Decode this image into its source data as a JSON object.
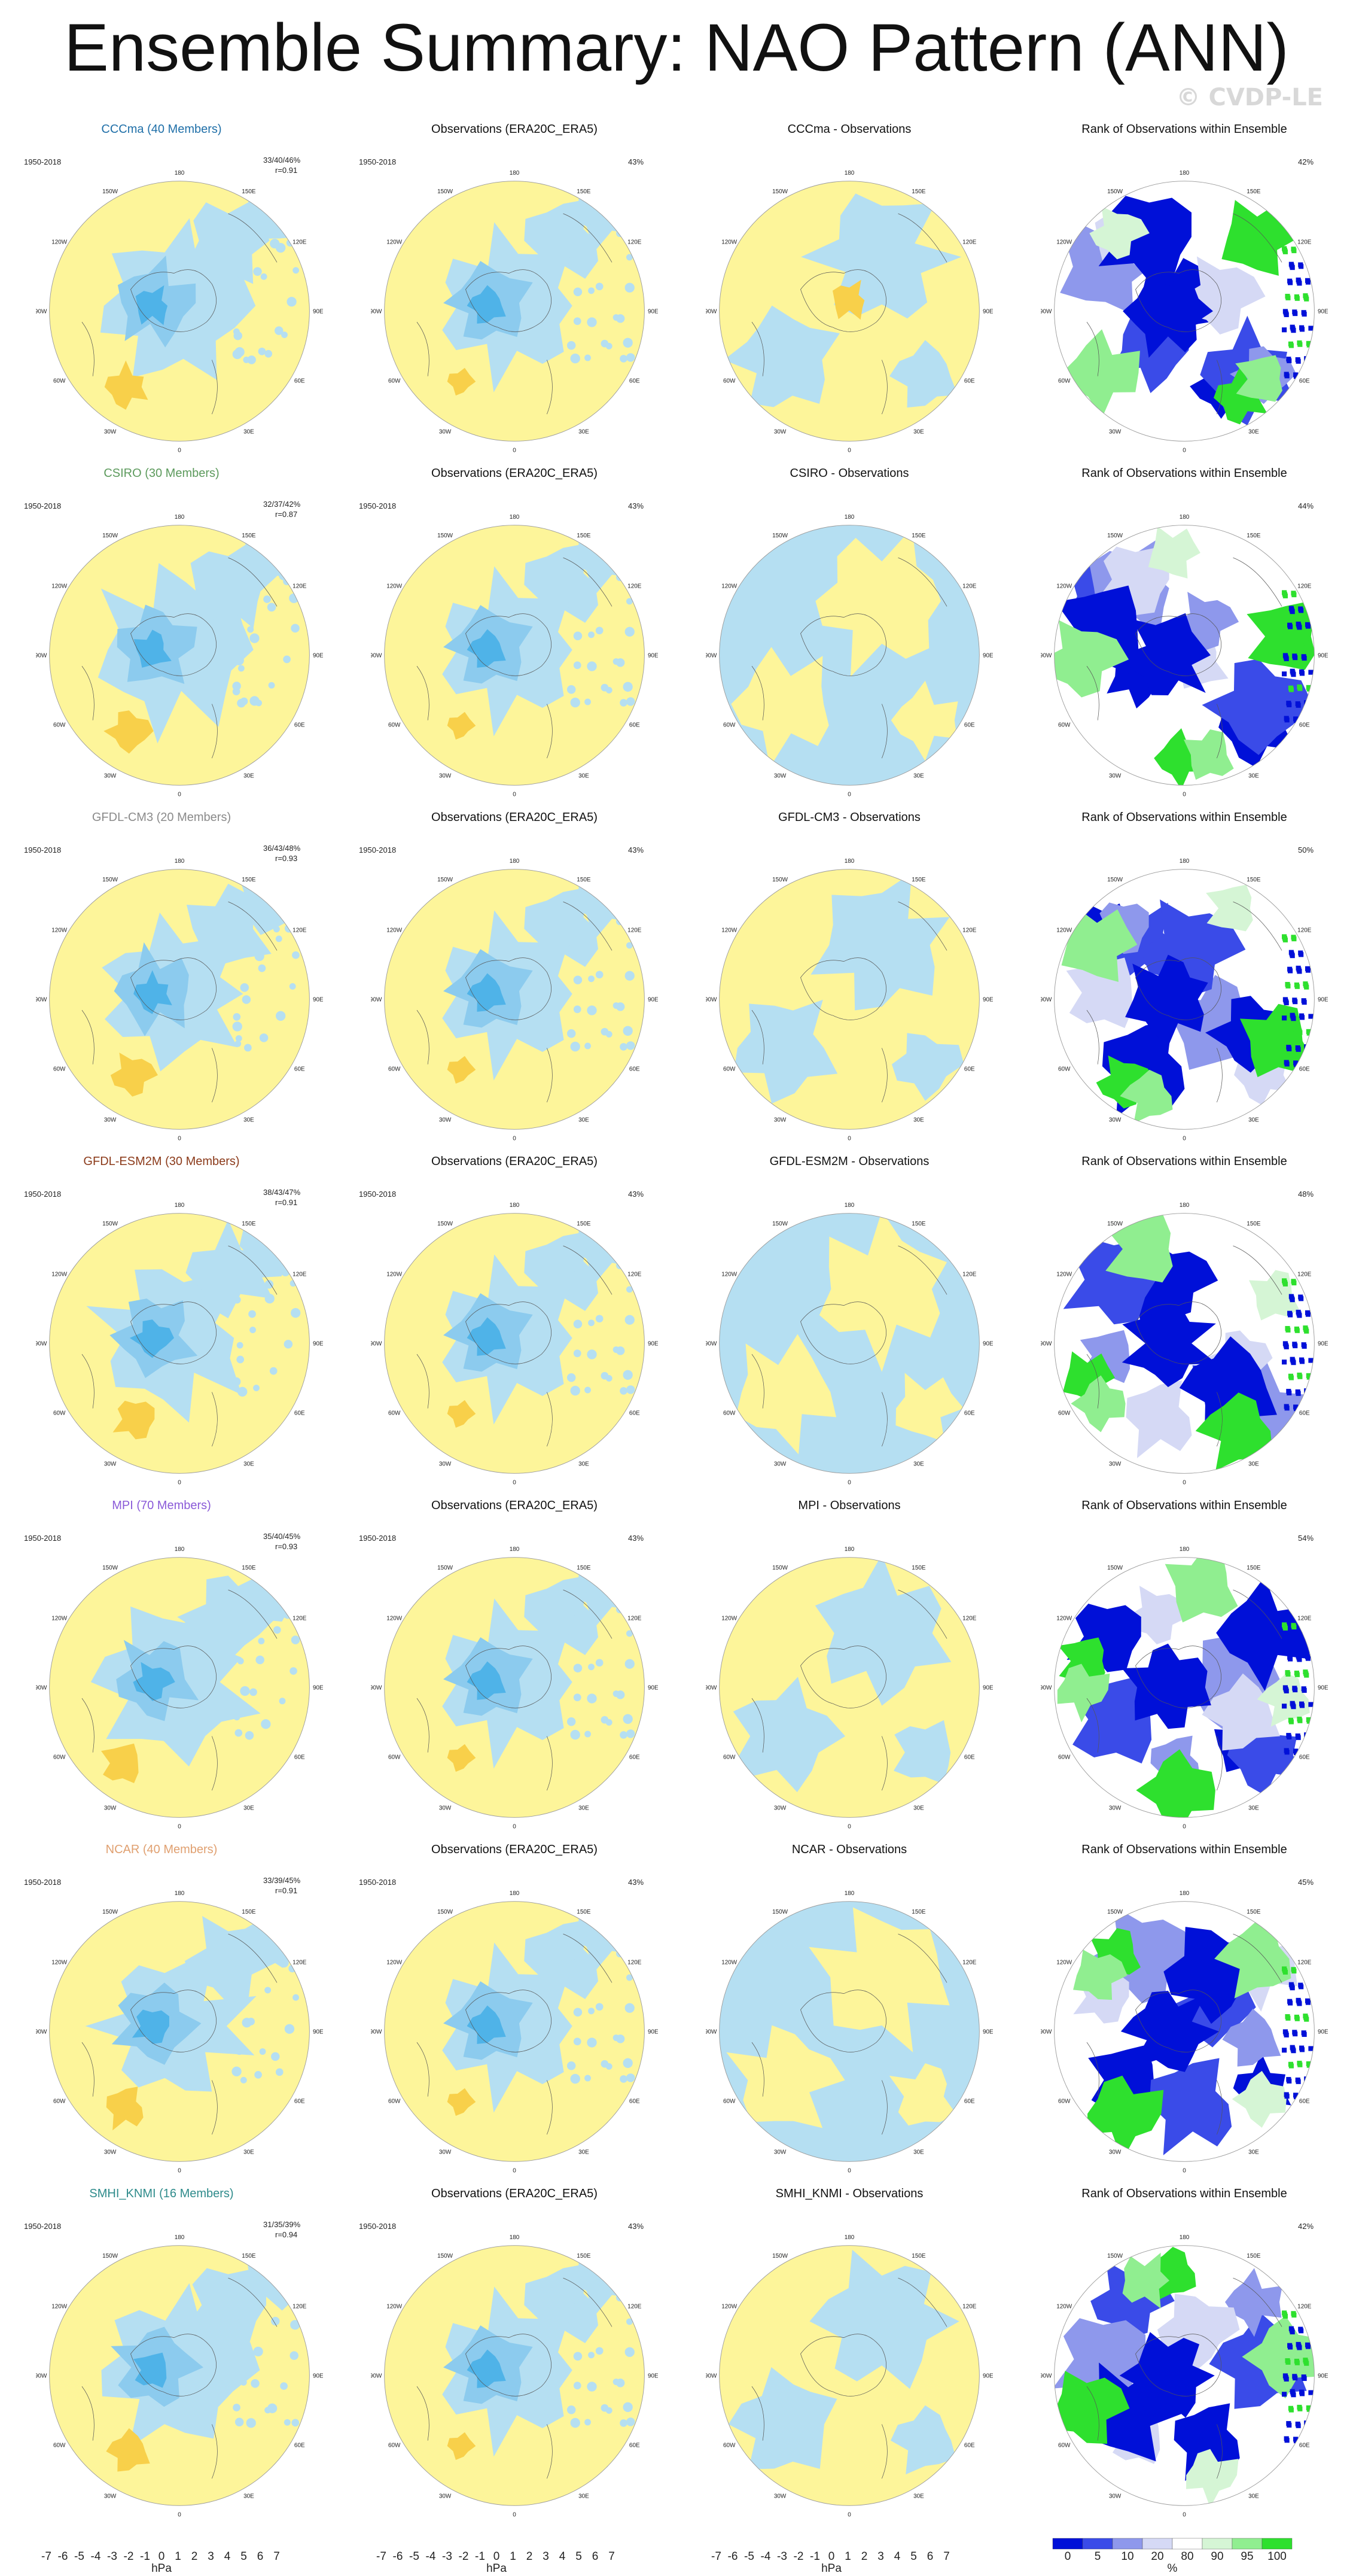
{
  "title": "Ensemble Summary: NAO Pattern (ANN)",
  "watermark": "© CVDP-LE",
  "period": "1950-2018",
  "col_titles": {
    "obs": "Observations (ERA20C_ERA5)",
    "rank": "Rank of Observations within Ensemble",
    "diff_suffix": " - Observations"
  },
  "obs_variance": "43%",
  "lon_labels": [
    "180",
    "150E",
    "120E",
    "90E",
    "60E",
    "30E",
    "0",
    "30W",
    "60W",
    "90W",
    "120W",
    "150W"
  ],
  "colors": {
    "CCCma": "#1f6fa8",
    "CSIRO": "#5c9a5c",
    "GFDL-CM3": "#8a8a8a",
    "GFDL-ESM2M": "#8b3a1a",
    "MPI": "#8a5ad8",
    "NCAR": "#e0a070",
    "SMHI_KNMI": "#2e8b8b",
    "map_pos": "#fdf59a",
    "map_neg": "#b5dff2",
    "map_neg2": "#8ccbee",
    "map_neg3": "#4fb3e8",
    "map_pos2": "#f8d04a"
  },
  "chart_data": [
    {
      "type": "map",
      "model": "CCCma",
      "members": "40",
      "title": "CCCma (40 Members)",
      "spread": "33/40/46%",
      "pattern_r": "r=0.91",
      "diff_title": "CCCma - Observations",
      "rank_percent": "42%"
    },
    {
      "type": "map",
      "model": "CSIRO",
      "members": "30",
      "title": "CSIRO (30 Members)",
      "spread": "32/37/42%",
      "pattern_r": "r=0.87",
      "diff_title": "CSIRO - Observations",
      "rank_percent": "44%"
    },
    {
      "type": "map",
      "model": "GFDL-CM3",
      "members": "20",
      "title": "GFDL-CM3 (20 Members)",
      "spread": "36/43/48%",
      "pattern_r": "r=0.93",
      "diff_title": "GFDL-CM3 - Observations",
      "rank_percent": "50%"
    },
    {
      "type": "map",
      "model": "GFDL-ESM2M",
      "members": "30",
      "title": "GFDL-ESM2M (30 Members)",
      "spread": "38/43/47%",
      "pattern_r": "r=0.91",
      "diff_title": "GFDL-ESM2M - Observations",
      "rank_percent": "48%"
    },
    {
      "type": "map",
      "model": "MPI",
      "members": "70",
      "title": "MPI (70 Members)",
      "spread": "35/40/45%",
      "pattern_r": "r=0.93",
      "diff_title": "MPI - Observations",
      "rank_percent": "54%"
    },
    {
      "type": "map",
      "model": "NCAR",
      "members": "40",
      "title": "NCAR (40 Members)",
      "spread": "33/39/45%",
      "pattern_r": "r=0.91",
      "diff_title": "NCAR - Observations",
      "rank_percent": "45%"
    },
    {
      "type": "map",
      "model": "SMHI_KNMI",
      "members": "16",
      "title": "SMHI_KNMI (16 Members)",
      "spread": "31/35/39%",
      "pattern_r": "r=0.94",
      "diff_title": "SMHI_KNMI - Observations",
      "rank_percent": "42%"
    }
  ],
  "colorbars": {
    "hpa": {
      "labels": [
        "-7",
        "-6",
        "-5",
        "-4",
        "-3",
        "-2",
        "-1",
        "0",
        "1",
        "2",
        "3",
        "4",
        "5",
        "6",
        "7"
      ],
      "unit": "hPa",
      "colors": [
        "#7b2ee0",
        "#3b35e8",
        "#2f62e8",
        "#3a8fe8",
        "#4aa9ea",
        "#70c3ee",
        "#a6d8f3",
        "#d8eef8",
        "#ffffff",
        "#fdf59a",
        "#f8d04a",
        "#f7a531",
        "#f07a1e",
        "#e8441a",
        "#d81f1f",
        "#f5a0a0"
      ]
    },
    "rank": {
      "labels": [
        "0",
        "5",
        "10",
        "20",
        "80",
        "90",
        "95",
        "100"
      ],
      "unit": "%",
      "colors": [
        "#0010d8",
        "#3a4be8",
        "#8e98ec",
        "#d5d9f5",
        "#ffffff",
        "#d5f5d5",
        "#90ee90",
        "#2ee02e"
      ]
    }
  }
}
